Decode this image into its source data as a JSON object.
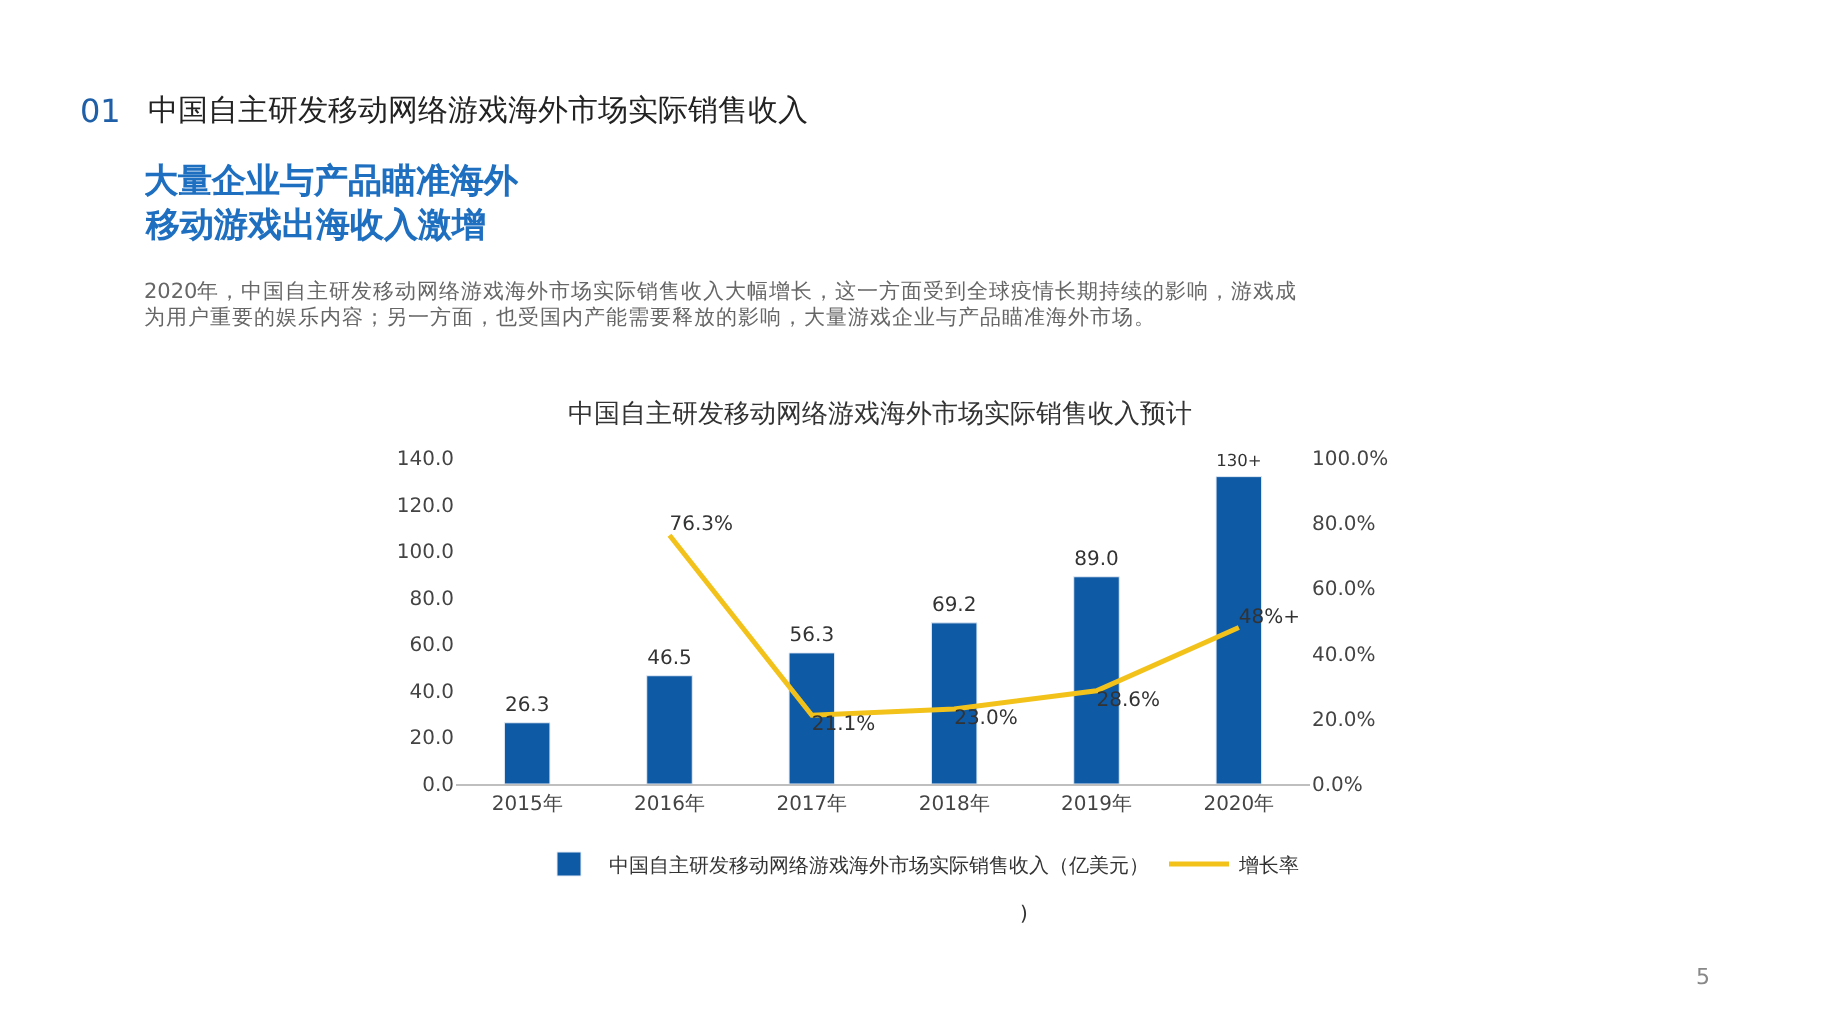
{
  "chart_data": {
    "type": "bar",
    "title": "中国自主研发移动网络游戏海外市场实际销售收入预计",
    "categories": [
      "2015年",
      "2016年",
      "2017年",
      "2018年",
      "2019年",
      "2020年"
    ],
    "series": [
      {
        "name": "中国自主研发移动网络游戏海外市场实际销售收入（亿美元）",
        "color": "#0f5aa5",
        "values": [
          26.3,
          46.5,
          56.3,
          69.2,
          89.0,
          132
        ],
        "value_labels": [
          "26.3",
          "46.5",
          "56.3",
          "69.2",
          "89.0",
          "130+"
        ]
      },
      {
        "name": "增长率",
        "type": "line",
        "axis": "y2",
        "color": "#f2c21b",
        "values": [
          null,
          76.3,
          21.1,
          23.0,
          28.6,
          48
        ],
        "value_labels": [
          null,
          "76.3%",
          "21.1%",
          "23.0%",
          "28.6%",
          "48%+"
        ]
      }
    ],
    "ylim": [
      0,
      140
    ],
    "yticks": [
      {
        "value": 0,
        "label": "0.0"
      },
      {
        "value": 20,
        "label": "20.0"
      },
      {
        "value": 40,
        "label": "40.0"
      },
      {
        "value": 60,
        "label": "60.0"
      },
      {
        "value": 80,
        "label": "80.0"
      },
      {
        "value": 100,
        "label": "100.0"
      },
      {
        "value": 120,
        "label": "120.0"
      },
      {
        "value": 140,
        "label": "140.0"
      }
    ],
    "y2lim": [
      0,
      100
    ],
    "y2ticks": [
      {
        "value": 0,
        "label": "0.0%"
      },
      {
        "value": 20,
        "label": "20.0%"
      },
      {
        "value": 40,
        "label": "40.0%"
      },
      {
        "value": 60,
        "label": "60.0%"
      },
      {
        "value": 80,
        "label": "80.0%"
      },
      {
        "value": 100,
        "label": "100.0%"
      }
    ],
    "legend": "bottom",
    "marker": "none",
    "line_style": "solid",
    "annotations": [
      "01",
      "中国自主研发移动网络游戏海外市场实际销售收入",
      "大量企业与产品瞄准海外",
      "移动游戏出海收入激增",
      "2020年，中国自主研发移动网络游戏海外市场实际销售收入大幅增长，这一方面受到全球疫情长期持续的影响，游戏成",
      "为用户重要的娱乐内容；另一方面，也受国内产能需要释放的影响，大量游戏企业与产品瞄准海外市场。",
      ")",
      "5"
    ]
  }
}
